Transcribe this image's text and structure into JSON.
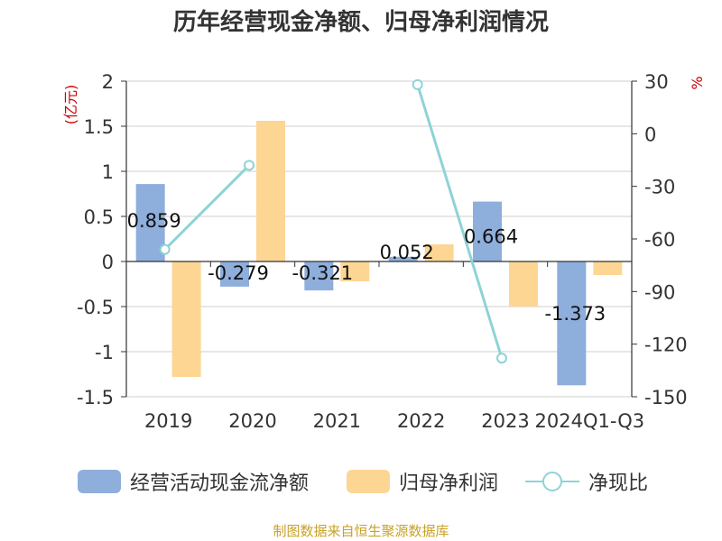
{
  "chart_data": {
    "type": "bar+line",
    "title": "历年经营现金净额、归母净利润情况",
    "categories": [
      "2019",
      "2020",
      "2021",
      "2022",
      "2023",
      "2024Q1-Q3"
    ],
    "series": [
      {
        "name": "经营活动现金流净额",
        "type": "bar",
        "axis": "left",
        "values": [
          0.859,
          -0.279,
          -0.321,
          0.052,
          0.664,
          -1.373
        ],
        "color": "#8eaedc"
      },
      {
        "name": "归母净利润",
        "type": "bar",
        "axis": "left",
        "values": [
          -1.28,
          1.56,
          -0.22,
          0.19,
          -0.5,
          -0.15
        ],
        "color": "#fdd694"
      },
      {
        "name": "净现比",
        "type": "line",
        "axis": "right",
        "values": [
          -66,
          -18,
          null,
          28,
          -128,
          null
        ],
        "color": "#8ed3d6"
      }
    ],
    "data_labels": [
      "0.859",
      "-0.279",
      "-0.321",
      "0.052",
      "0.664",
      "-1.373"
    ],
    "y_left": {
      "label": "(亿元)",
      "min": -1.5,
      "max": 2,
      "ticks": [
        "2",
        "1.5",
        "1",
        "0.5",
        "0",
        "-0.5",
        "-1",
        "-1.5"
      ],
      "tick_values": [
        2,
        1.5,
        1,
        0.5,
        0,
        -0.5,
        -1,
        -1.5
      ]
    },
    "y_right": {
      "label": "%",
      "min": -150,
      "max": 30,
      "ticks": [
        "30",
        "0",
        "-30",
        "-60",
        "-90",
        "-120",
        "-150"
      ],
      "tick_values": [
        30,
        0,
        -30,
        -60,
        -90,
        -120,
        -150
      ]
    },
    "grid": true,
    "legend_position": "bottom",
    "axis_label_color": "#cc0000"
  },
  "source": "制图数据来自恒生聚源数据库"
}
